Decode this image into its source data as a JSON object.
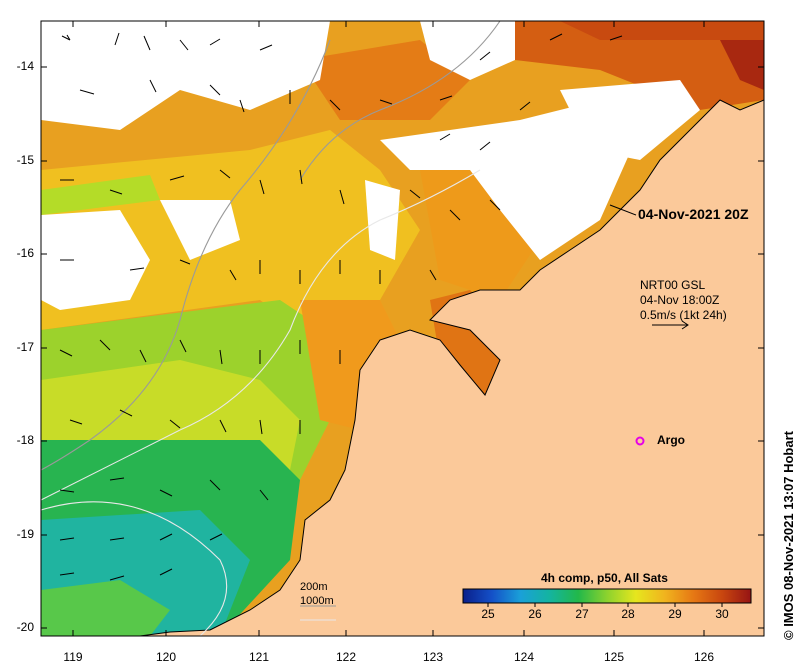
{
  "map": {
    "date_label": "04-Nov-2021 20Z",
    "current_legend": {
      "line1": "NRT00 GSL",
      "line2": "04-Nov 18:00Z",
      "line3": "0.5m/s (1kt 24h)"
    },
    "argo_label": "Argo",
    "isobaths": {
      "label_200": "200m",
      "label_1000": "1000m"
    },
    "latitude_labels": [
      "-14",
      "-15",
      "-16",
      "-17",
      "-18",
      "-19",
      "-20"
    ],
    "longitude_labels": [
      "119",
      "120",
      "121",
      "122",
      "123",
      "124",
      "125",
      "126"
    ],
    "credit": "© IMOS 08-Nov-2021 13:07 Hobart",
    "colorbar": {
      "title": "4h comp, p50, All Sats",
      "ticks": [
        "25",
        "26",
        "27",
        "28",
        "29",
        "30"
      ],
      "colors": [
        "#0a1f8a",
        "#1450c8",
        "#1aa0d8",
        "#14b4a0",
        "#22b84a",
        "#8cd22e",
        "#e6e61e",
        "#f0b41e",
        "#e67814",
        "#c8460f",
        "#961414"
      ]
    },
    "colors": {
      "land": "#fbc99a",
      "no_data": "#ffffff",
      "argo_marker": "#e600e6"
    }
  }
}
